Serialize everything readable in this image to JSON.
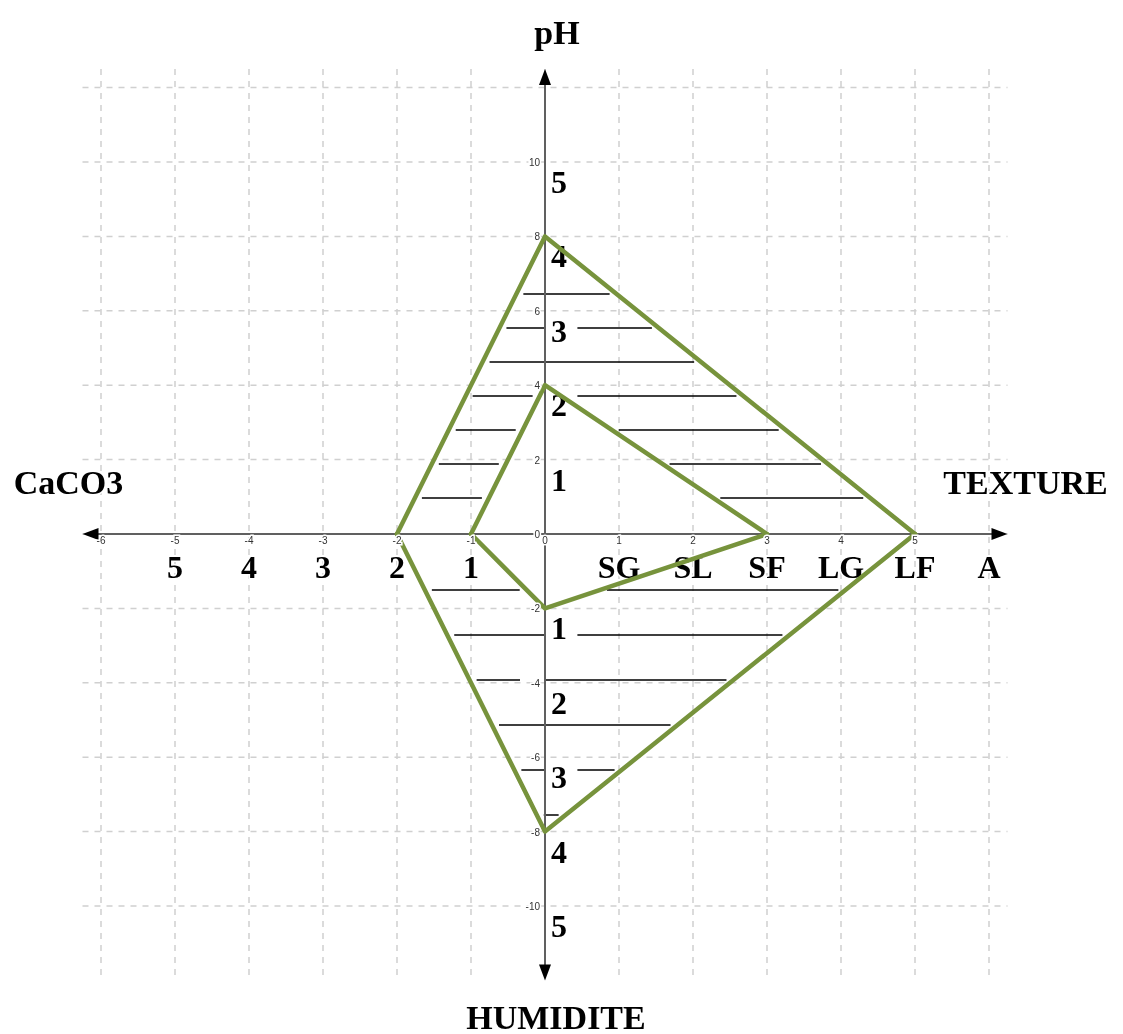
{
  "chart_data": {
    "type": "line",
    "xlabel": "TEXTURE",
    "y2label": "pH",
    "annotations": [
      "HUMIDITE",
      "CaCO3"
    ],
    "xlim": [
      -6.25,
      6.25
    ],
    "ylim": [
      -12,
      12.5
    ],
    "xticks": [
      -6,
      -5,
      -4,
      -3,
      -2,
      -1,
      0,
      1,
      2,
      3,
      4,
      5,
      {
        "value": 6,
        "label": null
      }
    ],
    "yticks": [
      -10,
      -8,
      -6,
      -4,
      -2,
      0,
      2,
      4,
      6,
      8,
      10,
      {
        "value": 12,
        "label": null
      }
    ],
    "x2lim": [
      6.25,
      -6.25
    ],
    "x2ticks": [
      5,
      4,
      3,
      2,
      1,
      {
        "value": -1,
        "label": "SG"
      },
      {
        "value": -2,
        "label": "SL"
      },
      {
        "value": -3,
        "label": "SF"
      },
      {
        "value": -4,
        "label": "LG"
      },
      {
        "value": -5,
        "label": "LF"
      },
      {
        "value": -6,
        "label": "A"
      }
    ],
    "y2lim": [
      -6,
      6.25
    ],
    "y2ticks": [
      1,
      2,
      3,
      4,
      5
    ],
    "y3lim": [
      6,
      -6.25
    ],
    "y3ticks": [
      1,
      2,
      3,
      4,
      5
    ],
    "grid": true,
    "series": [
      {
        "color": "#77933c",
        "x": [
          -2,
          0,
          5
        ],
        "values": [
          0,
          8,
          0
        ]
      },
      {
        "color": "#77933c",
        "x": [
          -2,
          0,
          5
        ],
        "values": [
          0,
          -8,
          0
        ]
      },
      {
        "color": "#77933c",
        "x": [
          -1,
          0,
          3
        ],
        "values": [
          0,
          4,
          0
        ]
      },
      {
        "color": "#77933c",
        "x": [
          -1,
          0,
          3
        ],
        "values": [
          0,
          -2,
          0
        ]
      }
    ]
  }
}
